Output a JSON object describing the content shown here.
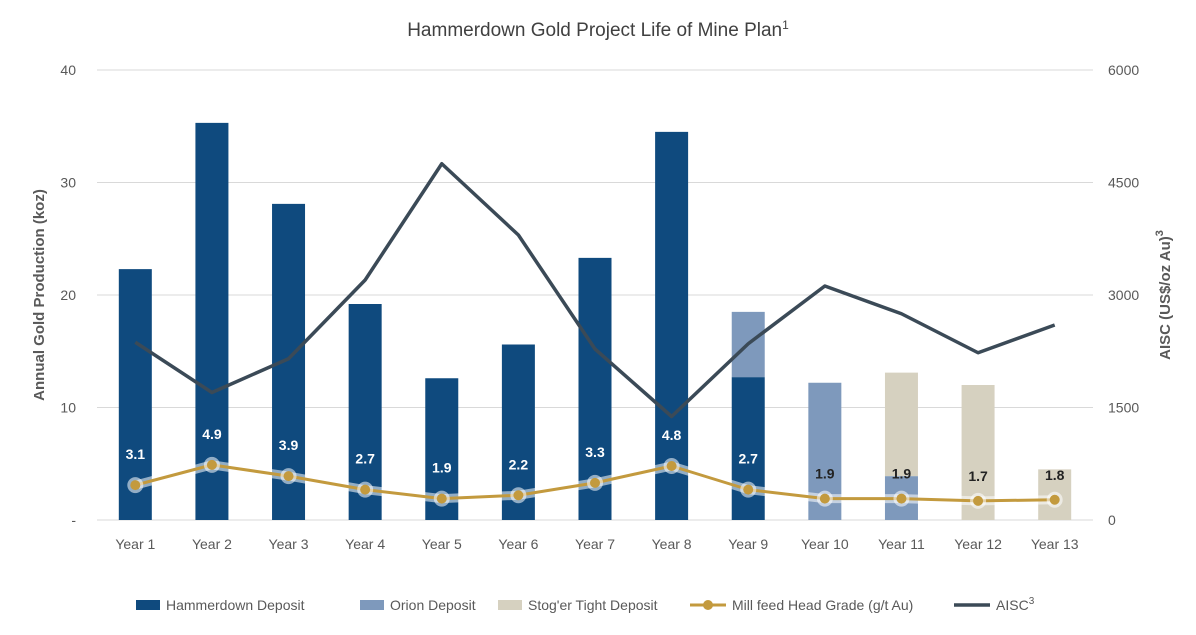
{
  "colors": {
    "hammerdown": "#0f4a7e",
    "orion": "#7e99bc",
    "stoger": "#d6d1c0",
    "grade": "#c39a3e",
    "aisc": "#3b4a57",
    "grid": "#d9d9d9",
    "axis_text": "#595959",
    "label_text_light": "#ffffff",
    "label_text_dark": "#222222"
  },
  "chart_data": {
    "type": "bar",
    "title": "Hammerdown Gold Project Life of Mine Plan",
    "title_superscript": "1",
    "categories": [
      "Year 1",
      "Year 2",
      "Year 3",
      "Year 4",
      "Year 5",
      "Year 6",
      "Year 7",
      "Year 8",
      "Year 9",
      "Year 10",
      "Year 11",
      "Year 12",
      "Year 13"
    ],
    "ylabel": "Annual Gold Production (koz)",
    "y2label": "AISC (US$/oz Au)",
    "y2label_superscript": "3",
    "ylim": [
      0,
      40
    ],
    "y2lim": [
      0,
      6000
    ],
    "yticks": [
      "-",
      "10",
      "20",
      "30",
      "40"
    ],
    "yticks_values": [
      0,
      10,
      20,
      30,
      40
    ],
    "y2ticks": [
      "0",
      "1500",
      "3000",
      "4500",
      "6000"
    ],
    "y2ticks_values": [
      0,
      1500,
      3000,
      4500,
      6000
    ],
    "grid": true,
    "legend_position": "bottom",
    "series": [
      {
        "name": "Hammerdown Deposit",
        "kind": "bar",
        "axis": "left",
        "values": [
          22.3,
          35.3,
          28.1,
          19.2,
          12.6,
          15.6,
          23.3,
          34.5,
          12.7,
          0,
          0,
          0,
          0
        ]
      },
      {
        "name": "Orion Deposit",
        "kind": "bar",
        "axis": "left",
        "values": [
          0,
          0,
          0,
          0,
          0,
          0,
          0,
          0,
          5.8,
          12.2,
          3.9,
          0,
          0
        ]
      },
      {
        "name": "Stog'er Tight Deposit",
        "kind": "bar",
        "axis": "left",
        "values": [
          0,
          0,
          0,
          0,
          0,
          0,
          0,
          0,
          0,
          0,
          9.2,
          12.0,
          4.5
        ]
      },
      {
        "name": "Mill feed Head Grade (g/t Au)",
        "kind": "line",
        "axis": "left",
        "values": [
          3.1,
          4.9,
          3.9,
          2.7,
          1.9,
          2.2,
          3.3,
          4.8,
          2.7,
          1.9,
          1.9,
          1.7,
          1.8
        ],
        "labels": [
          "3.1",
          "4.9",
          "3.9",
          "2.7",
          "1.9",
          "2.2",
          "3.3",
          "4.8",
          "2.7",
          "1.9",
          "1.9",
          "1.7",
          "1.8"
        ]
      },
      {
        "name": "AISC",
        "name_superscript": "3",
        "kind": "line",
        "axis": "right",
        "values": [
          2370,
          1700,
          2150,
          3200,
          4750,
          3800,
          2280,
          1380,
          2350,
          3120,
          2750,
          2230,
          2600
        ]
      }
    ]
  }
}
